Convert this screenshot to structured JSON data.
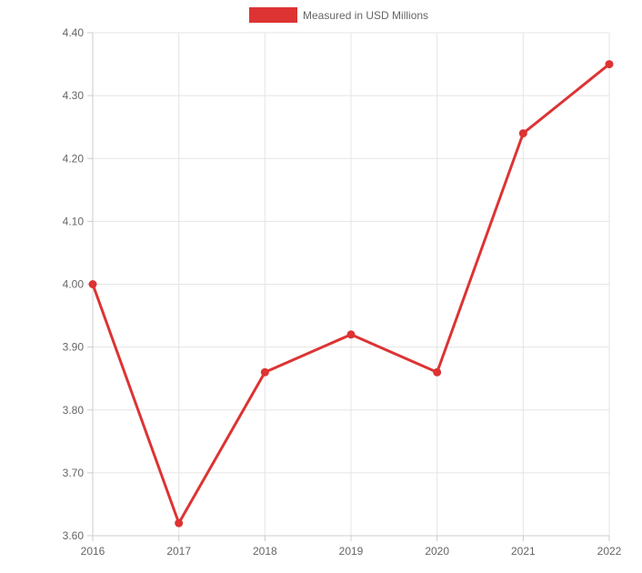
{
  "chart_data": {
    "type": "line",
    "x": [
      "2016",
      "2017",
      "2018",
      "2019",
      "2020",
      "2021",
      "2022"
    ],
    "series": [
      {
        "name": "Measured in USD Millions",
        "values": [
          4.0,
          3.62,
          3.86,
          3.92,
          3.86,
          4.24,
          4.35
        ],
        "color": "#dd3333"
      }
    ],
    "ylim": [
      3.6,
      4.4
    ],
    "yticks": [
      "3.60",
      "3.70",
      "3.80",
      "3.90",
      "4.00",
      "4.10",
      "4.20",
      "4.30",
      "4.40"
    ],
    "grid": true,
    "legend_position": "top"
  }
}
